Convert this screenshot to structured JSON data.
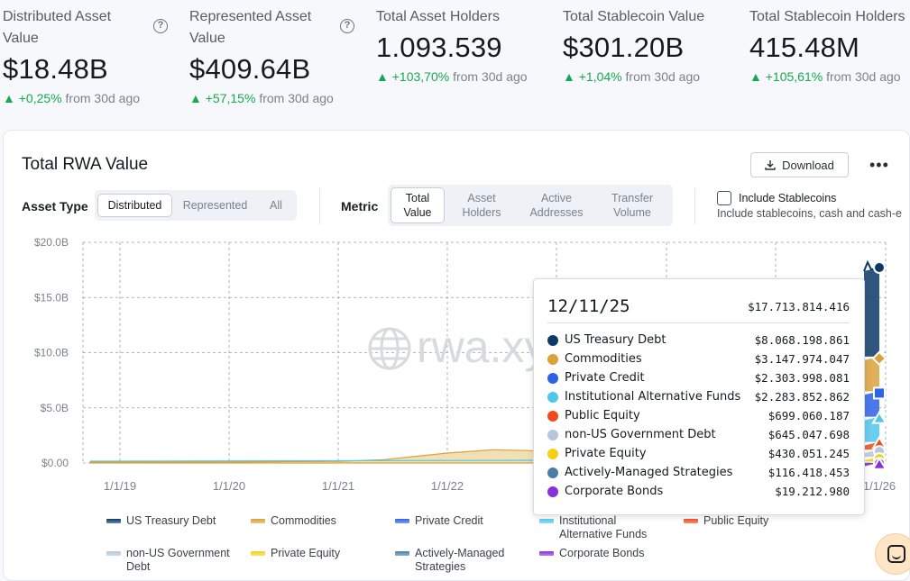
{
  "kpis": [
    {
      "label": "Distributed Asset Value",
      "value": "$18.48B",
      "delta_pct": "+0,25%",
      "delta_rest": "from 30d ago",
      "has_help": true
    },
    {
      "label": "Represented Asset Value",
      "value": "$409.64B",
      "delta_pct": "+57,15%",
      "delta_rest": "from 30d ago",
      "has_help": true
    },
    {
      "label": "Total Asset Holders",
      "value": "1.093.539",
      "delta_pct": "+103,70%",
      "delta_rest": "from 30d ago"
    },
    {
      "label": "Total Stablecoin Value",
      "value": "$301.20B",
      "delta_pct": "+1,04%",
      "delta_rest": "from 30d ago"
    },
    {
      "label": "Total Stablecoin Holders",
      "value": "415.48M",
      "delta_pct": "+105,61%",
      "delta_rest": "from 30d ago"
    }
  ],
  "card": {
    "title": "Total RWA Value",
    "download_label": "Download",
    "asset_type_label": "Asset Type",
    "asset_type_options": [
      "Distributed",
      "Represented",
      "All"
    ],
    "asset_type_selected": "Distributed",
    "metric_label": "Metric",
    "metric_options": [
      [
        "Total",
        "Value"
      ],
      [
        "Asset",
        "Holders"
      ],
      [
        "Active",
        "Addresses"
      ],
      [
        "Transfer",
        "Volume"
      ]
    ],
    "metric_selected": "Total Value",
    "include_stablecoins_label": "Include Stablecoins",
    "include_stablecoins_sub": "Include stablecoins, cash and cash-e",
    "include_stablecoins_checked": false,
    "watermark": "rwa.xyz"
  },
  "tooltip": {
    "date": "12/11/25",
    "total": "$17.713.814.416",
    "rows": [
      {
        "name": "US Treasury Debt",
        "value": "$8.068.198.861",
        "color": "#0b3a66"
      },
      {
        "name": "Commodities",
        "value": "$3.147.974.047",
        "color": "#d9a23a"
      },
      {
        "name": "Private Credit",
        "value": "$2.303.998.081",
        "color": "#2b62e6"
      },
      {
        "name": "Institutional Alternative Funds",
        "value": "$2.283.852.862",
        "color": "#4fc6ec"
      },
      {
        "name": "Public Equity",
        "value": "$699.060.187",
        "color": "#f04a1a"
      },
      {
        "name": "non-US Government Debt",
        "value": "$645.047.698",
        "color": "#b7c6da"
      },
      {
        "name": "Private Equity",
        "value": "$430.051.245",
        "color": "#f5d016"
      },
      {
        "name": "Actively-Managed Strategies",
        "value": "$116.418.453",
        "color": "#4a7ea8"
      },
      {
        "name": "Corporate Bonds",
        "value": "$19.212.980",
        "color": "#8b2fd6"
      }
    ]
  },
  "legend": [
    {
      "name": "US Treasury Debt",
      "color": "#0b3a66"
    },
    {
      "name": "Commodities",
      "color": "#d9a23a"
    },
    {
      "name": "Private Credit",
      "color": "#2b62e6"
    },
    {
      "name": "Institutional Alternative Funds",
      "name_lines": [
        "Institutional",
        "Alternative Funds"
      ],
      "color": "#4fc6ec"
    },
    {
      "name": "Public Equity",
      "color": "#f04a1a"
    },
    {
      "name": "non-US Government Debt",
      "name_lines": [
        "non-US Government",
        "Debt"
      ],
      "color": "#b7c6da"
    },
    {
      "name": "Private Equity",
      "color": "#f5d016"
    },
    {
      "name": "Actively-Managed Strategies",
      "name_lines": [
        "Actively-Managed",
        "Strategies"
      ],
      "color": "#4a7ea8"
    },
    {
      "name": "Corporate Bonds",
      "color": "#8b2fd6"
    }
  ],
  "chart_data": {
    "type": "area",
    "title": "Total RWA Value",
    "y_ticks": [
      "$0.00",
      "$5.0B",
      "$10.0B",
      "$15.0B",
      "$20.0B"
    ],
    "ylim": [
      0,
      20
    ],
    "y_unit": "B USD",
    "x_ticks": [
      "1/1/19",
      "1/1/20",
      "1/1/21",
      "1/1/22",
      "1/1/26"
    ],
    "grid": true,
    "series": [
      {
        "name": "Total",
        "x": [
          "2018-06",
          "2019-01",
          "2020-01",
          "2021-01",
          "2021-06",
          "2022-01",
          "2022-06",
          "2025-12"
        ],
        "values": [
          0.1,
          0.1,
          0.1,
          0.15,
          0.3,
          0.9,
          1.2,
          17.7
        ]
      }
    ]
  }
}
